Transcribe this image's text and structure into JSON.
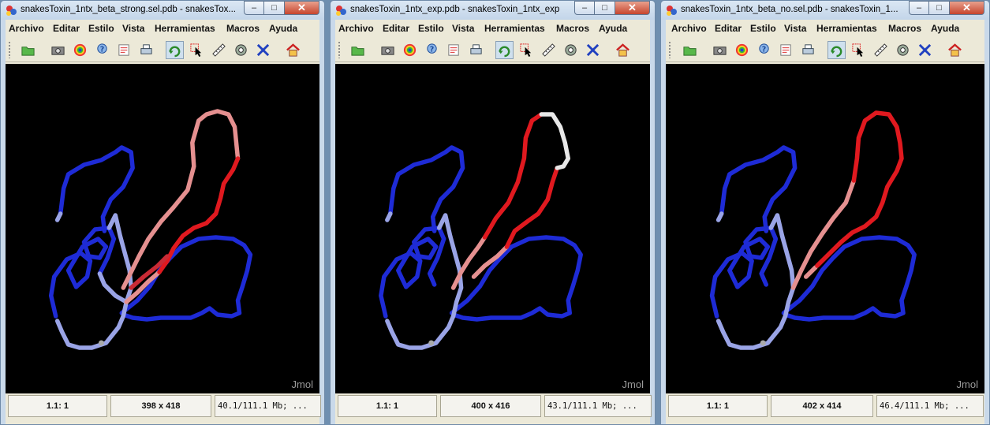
{
  "menu": [
    "Archivo",
    "Editar",
    "Estilo",
    "Vista",
    "Herramientas",
    "Macros",
    "Ayuda"
  ],
  "toolbar_icons": [
    "open-icon",
    "camera-icon",
    "rainbow-icon",
    "help-icon",
    "script-icon",
    "print-icon",
    "rotate-icon",
    "pick-icon",
    "measure-icon",
    "spin-icon",
    "delete-icon",
    "home-icon"
  ],
  "watermark": "Jmol",
  "windows": [
    {
      "title": "snakesToxin_1ntx_beta_strong.sel.pdb - snakesTox...",
      "status": {
        "frame": "1.1: 1",
        "size": "398 x 418",
        "memory": "40.1/111.1 Mb; ..."
      }
    },
    {
      "title": "snakesToxin_1ntx_exp.pdb - snakesToxin_1ntx_exp",
      "status": {
        "frame": "1.1: 1",
        "size": "400 x 416",
        "memory": "43.1/111.1 Mb; ..."
      }
    },
    {
      "title": "snakesToxin_1ntx_beta_no.sel.pdb - snakesToxin_1...",
      "status": {
        "frame": "1.1: 1",
        "size": "402 x 414",
        "memory": "46.4/111.1 Mb; ..."
      }
    }
  ],
  "colors": {
    "blue": "#1e2bd6",
    "light_blue": "#9aa4e6",
    "red": "#e0191f",
    "pink": "#e59090",
    "white": "#e8e8e8",
    "background": "#000000"
  }
}
